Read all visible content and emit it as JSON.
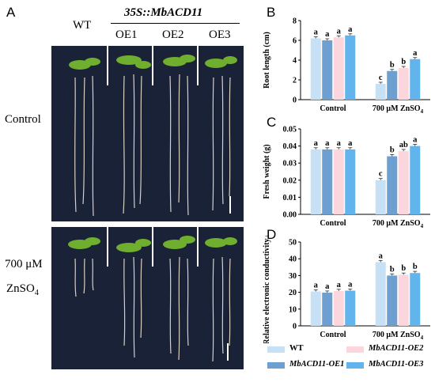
{
  "panel_letters": [
    "A",
    "B",
    "C",
    "D"
  ],
  "photo": {
    "header_wt": "WT",
    "header_transgene": "35S::MbACD11",
    "header_lines": [
      "OE1",
      "OE2",
      "OE3"
    ],
    "row_labels": {
      "control": "Control",
      "treatment_line1": "700 μM",
      "treatment_line2_main": "ZnSO",
      "treatment_line2_sub": "4"
    }
  },
  "colors": {
    "WT": "#c6e1f5",
    "MbACD11-OE1": "#6e9fd1",
    "MbACD11-OE2": "#fbd6dd",
    "MbACD11-OE3": "#62b4ec",
    "photo_bg": "#1a2238"
  },
  "legend": {
    "entries": [
      "WT",
      "MbACD11-OE2",
      "MbACD11-OE1",
      "MbACD11-OE3"
    ],
    "placement": "bottom"
  },
  "chart_data": [
    {
      "type": "bar",
      "panel": "B",
      "categories": [
        "Control",
        "700 μM ZnSO4"
      ],
      "ylabel": "Root length (cm)",
      "ylim": [
        0,
        8
      ],
      "yticks": [
        "0",
        "2",
        "4",
        "6",
        "8"
      ],
      "series": [
        {
          "name": "WT",
          "values": [
            6.2,
            1.6
          ],
          "letters": [
            "a",
            "c"
          ]
        },
        {
          "name": "MbACD11-OE1",
          "values": [
            6.0,
            2.9
          ],
          "letters": [
            "a",
            "b"
          ]
        },
        {
          "name": "MbACD11-OE2",
          "values": [
            6.3,
            3.2
          ],
          "letters": [
            "a",
            "b"
          ]
        },
        {
          "name": "MbACD11-OE3",
          "values": [
            6.5,
            4.1
          ],
          "letters": [
            "a",
            "a"
          ]
        }
      ]
    },
    {
      "type": "bar",
      "panel": "C",
      "categories": [
        "Control",
        "700 μM ZnSO4"
      ],
      "ylabel": "Fresh weight (g)",
      "ylim": [
        0,
        0.05
      ],
      "yticks": [
        "0.00",
        "0.01",
        "0.02",
        "0.03",
        "0.04",
        "0.05"
      ],
      "series": [
        {
          "name": "WT",
          "values": [
            0.038,
            0.02
          ],
          "letters": [
            "a",
            "c"
          ]
        },
        {
          "name": "MbACD11-OE1",
          "values": [
            0.038,
            0.034
          ],
          "letters": [
            "a",
            "b"
          ]
        },
        {
          "name": "MbACD11-OE2",
          "values": [
            0.038,
            0.037
          ],
          "letters": [
            "a",
            "ab"
          ]
        },
        {
          "name": "MbACD11-OE3",
          "values": [
            0.038,
            0.04
          ],
          "letters": [
            "a",
            "a"
          ]
        }
      ]
    },
    {
      "type": "bar",
      "panel": "D",
      "categories": [
        "Control",
        "700 μM ZnSO4"
      ],
      "ylabel": "Relative electronic conductivity (%)",
      "ylim": [
        0,
        50
      ],
      "yticks": [
        "0",
        "10",
        "20",
        "30",
        "40",
        "50"
      ],
      "series": [
        {
          "name": "WT",
          "values": [
            20.5,
            38.0
          ],
          "letters": [
            "a",
            "a"
          ]
        },
        {
          "name": "MbACD11-OE1",
          "values": [
            19.8,
            30.0
          ],
          "letters": [
            "a",
            "b"
          ]
        },
        {
          "name": "MbACD11-OE2",
          "values": [
            20.8,
            30.5
          ],
          "letters": [
            "a",
            "b"
          ]
        },
        {
          "name": "MbACD11-OE3",
          "values": [
            21.0,
            31.5
          ],
          "letters": [
            "a",
            "b"
          ]
        }
      ]
    }
  ]
}
